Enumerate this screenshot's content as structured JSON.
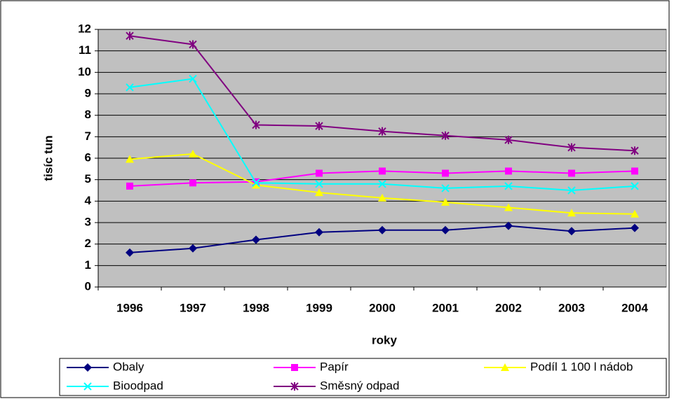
{
  "chart_data": {
    "type": "line",
    "xlabel": "roky",
    "ylabel": "tisíc tun",
    "categories": [
      "1996",
      "1997",
      "1998",
      "1999",
      "2000",
      "2001",
      "2002",
      "2003",
      "2004"
    ],
    "series": [
      {
        "name": "Obaly",
        "color": "#000080",
        "marker": "diamond",
        "values": [
          1.6,
          1.8,
          2.2,
          2.55,
          2.65,
          2.65,
          2.85,
          2.6,
          2.75
        ]
      },
      {
        "name": "Papír",
        "color": "#FF00FF",
        "marker": "square",
        "values": [
          4.7,
          4.85,
          4.9,
          5.3,
          5.4,
          5.3,
          5.4,
          5.3,
          5.4
        ]
      },
      {
        "name": "Podíl 1 100 l nádob",
        "color": "#FFFF00",
        "marker": "triangle",
        "values": [
          5.95,
          6.2,
          4.75,
          4.4,
          4.15,
          3.95,
          3.7,
          3.45,
          3.4
        ]
      },
      {
        "name": "Bioodpad",
        "color": "#00FFFF",
        "marker": "x",
        "values": [
          9.3,
          9.7,
          4.85,
          4.8,
          4.8,
          4.6,
          4.7,
          4.5,
          4.7
        ]
      },
      {
        "name": "Směsný odpad",
        "color": "#800080",
        "marker": "star",
        "values": [
          11.7,
          11.3,
          7.55,
          7.5,
          7.25,
          7.05,
          6.85,
          6.5,
          6.35
        ]
      }
    ],
    "ylim": [
      0,
      12
    ],
    "yticks": [
      0,
      1,
      2,
      3,
      4,
      5,
      6,
      7,
      8,
      9,
      10,
      11,
      12
    ],
    "grid": true
  }
}
